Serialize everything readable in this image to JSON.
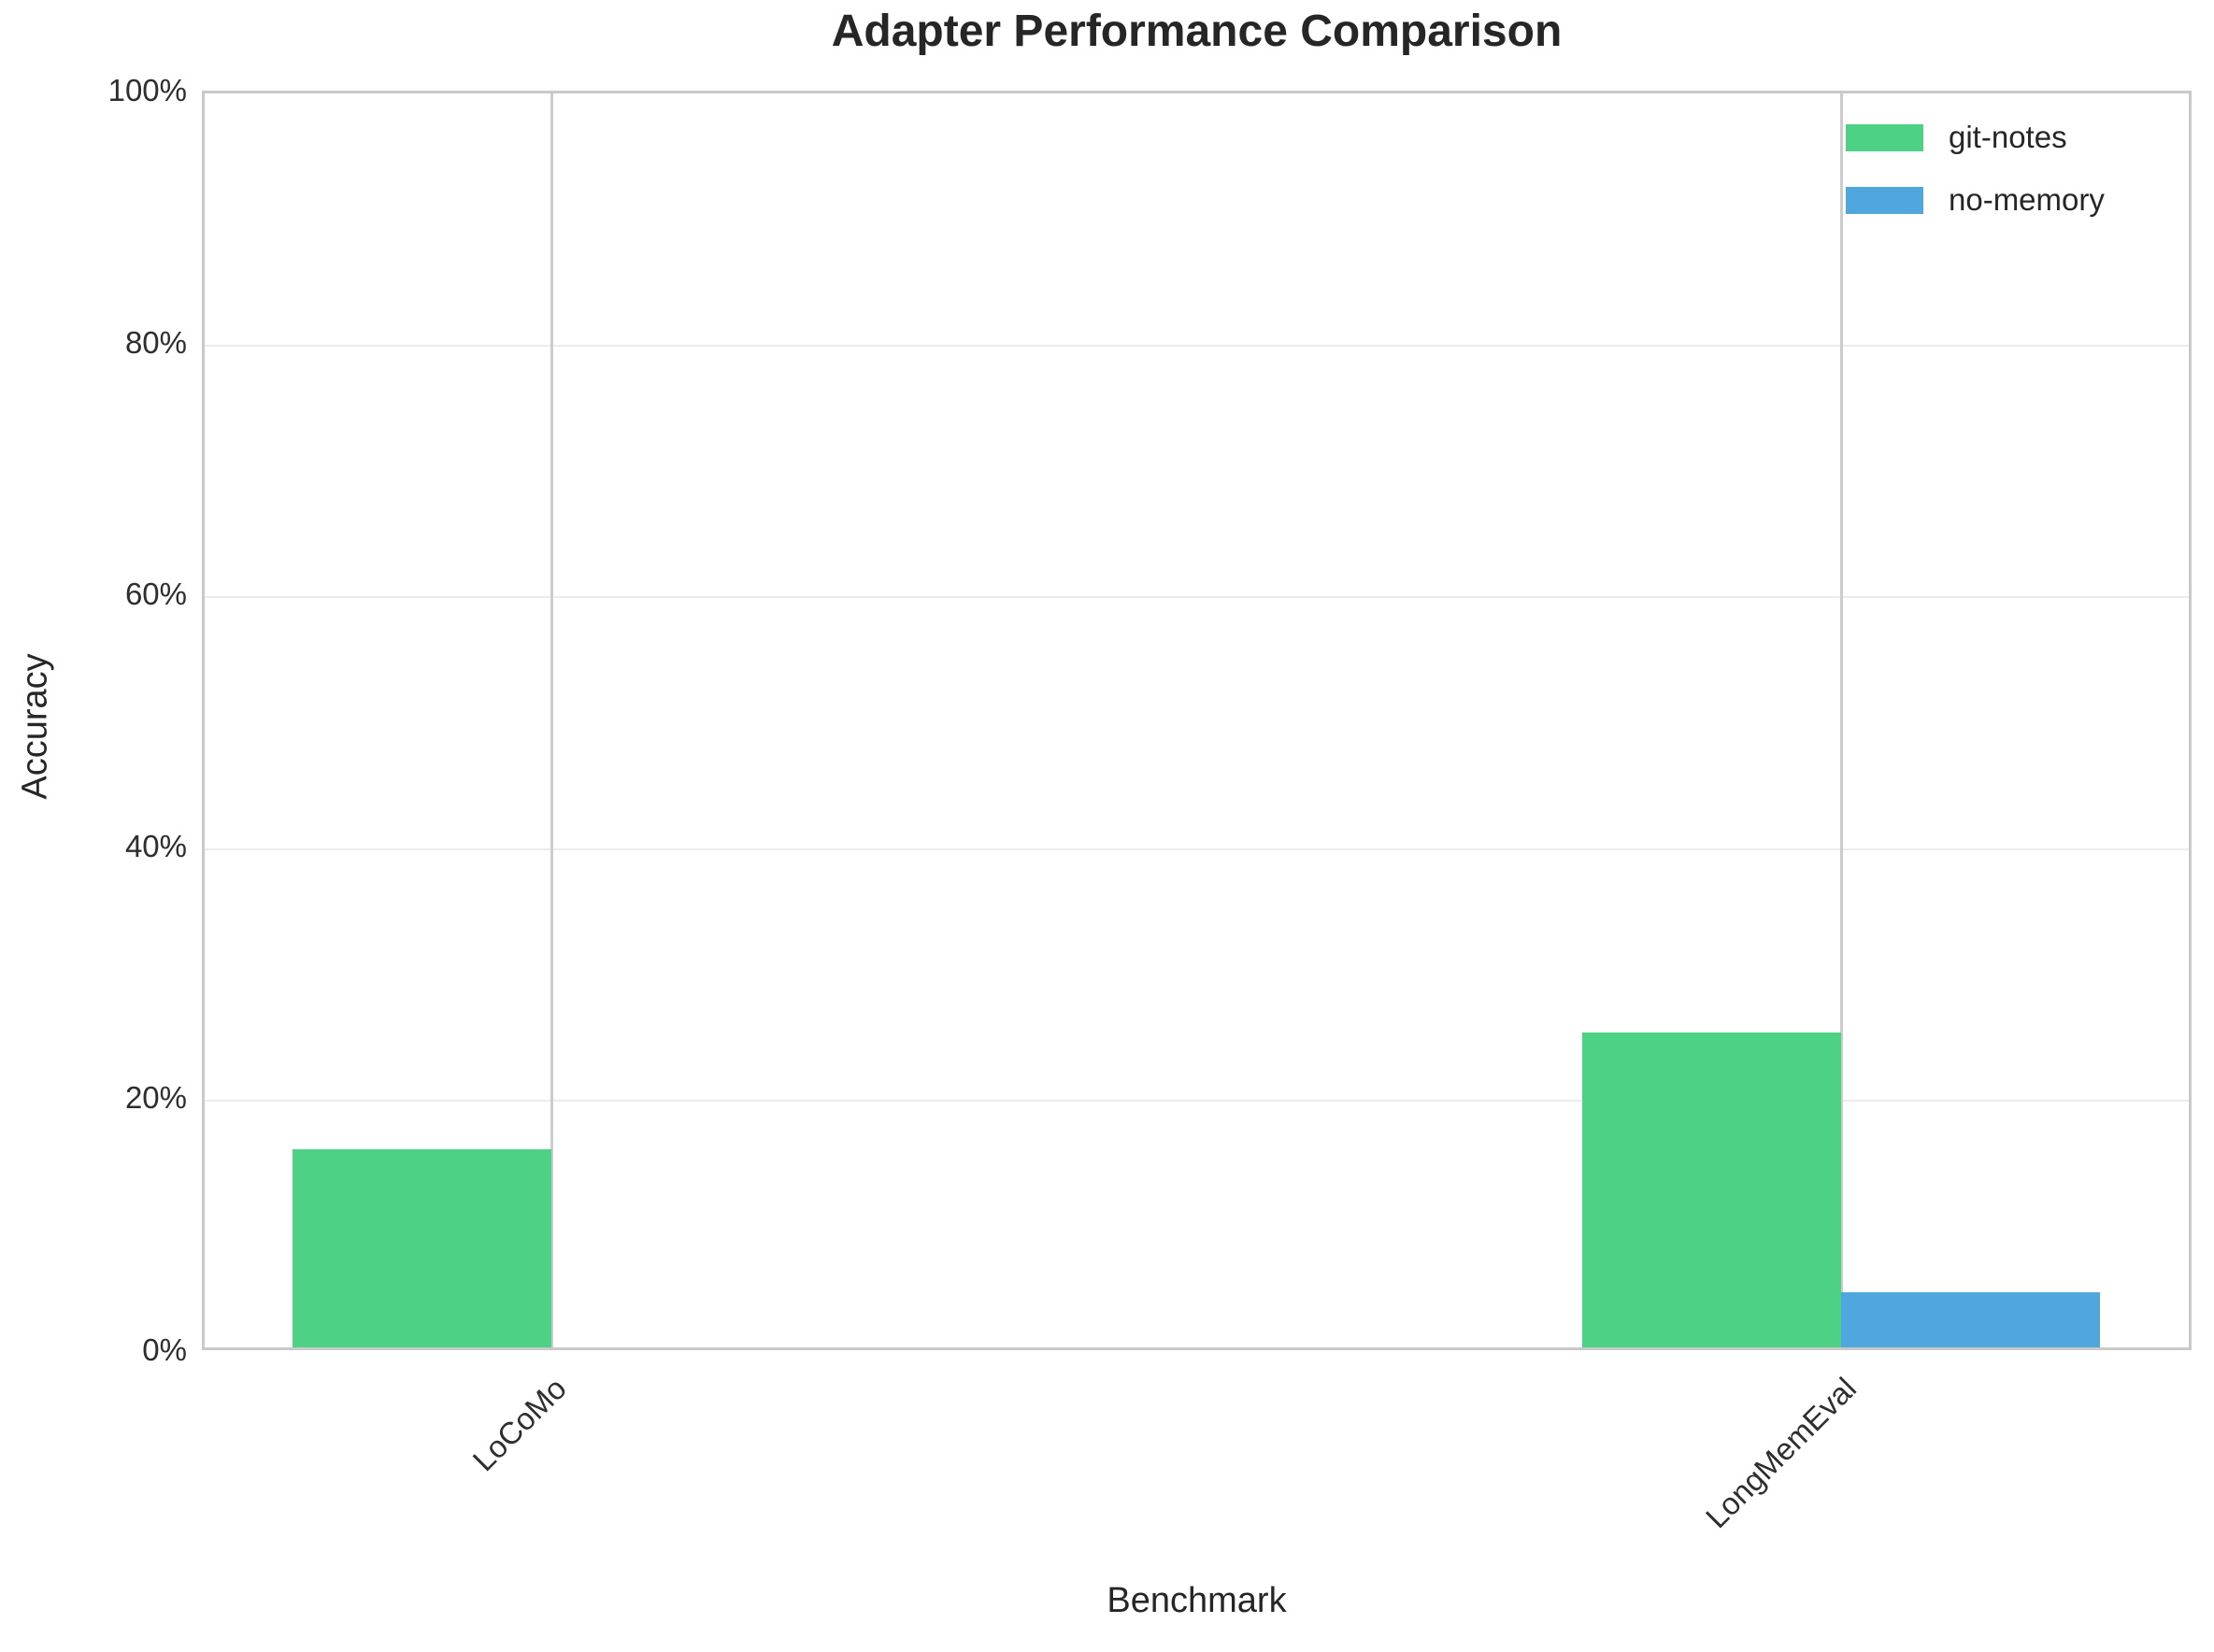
{
  "chart_data": {
    "type": "bar",
    "title": "Adapter Performance Comparison",
    "xlabel": "Benchmark",
    "ylabel": "Accuracy",
    "categories": [
      "LoCoMo",
      "LongMemEval"
    ],
    "series": [
      {
        "name": "git-notes",
        "color": "#4CD185",
        "values": [
          15.7,
          25.0
        ]
      },
      {
        "name": "no-memory",
        "color": "#4FA7DE",
        "values": [
          0.0,
          4.4
        ]
      }
    ],
    "ylim": [
      0,
      100
    ],
    "yticks": [
      0,
      20,
      40,
      60,
      80,
      100
    ],
    "ytick_labels": [
      "0%",
      "20%",
      "40%",
      "60%",
      "80%",
      "100%"
    ],
    "grid": true,
    "legend_position": "upper right",
    "value_unit": "percent"
  },
  "colors": {
    "plot_border": "#c9c9c9",
    "hgrid": "#ececec",
    "vgrid": "#cccccc",
    "text": "#262626"
  }
}
